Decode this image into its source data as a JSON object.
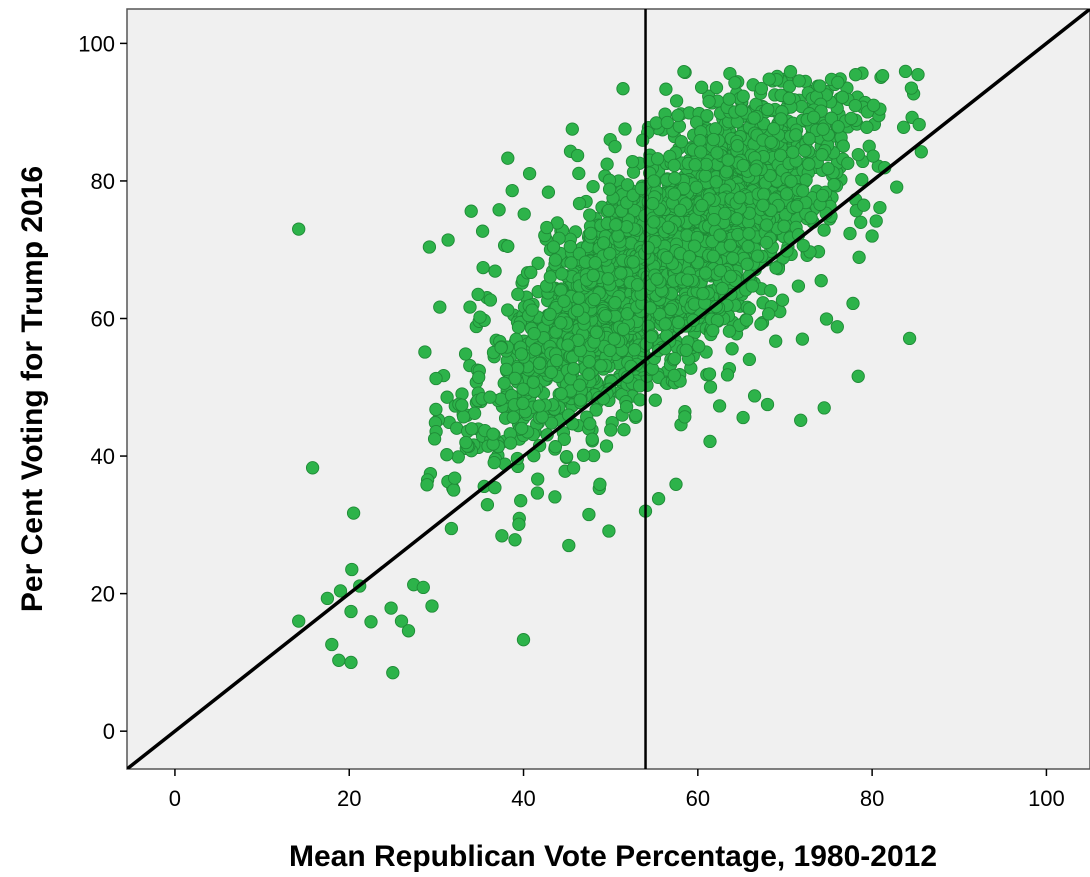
{
  "chart_data": {
    "type": "scatter",
    "title": "",
    "xlabel": "Mean Republican Vote Percentage, 1980-2012",
    "ylabel": "Per Cent Voting for Trump 2016",
    "xlim": [
      -5.5,
      105
    ],
    "ylim": [
      -5.5,
      105
    ],
    "xticks": [
      0,
      20,
      40,
      60,
      80,
      100
    ],
    "yticks": [
      0,
      20,
      40,
      60,
      80,
      100
    ],
    "grid": false,
    "legend": "none",
    "colors": {
      "point_fill": "#2db34a",
      "point_stroke": "#1f8a36",
      "plot_bg": "#f0f0f0",
      "line": "#000000"
    },
    "reference_lines": [
      {
        "kind": "diagonal",
        "from": [
          -5.5,
          -5.5
        ],
        "to": [
          105,
          105
        ]
      },
      {
        "kind": "vertical",
        "x": 54
      }
    ],
    "sample_cloud": {
      "count": 2600,
      "x_mean": 56,
      "x_sd": 10.5,
      "slope": 0.95,
      "intercept": 15,
      "resid_sd": 8.5,
      "x_range": [
        28,
        86
      ],
      "y_range": [
        14,
        96
      ]
    },
    "points": [
      {
        "x": 14.2,
        "y": 73
      },
      {
        "x": 14.2,
        "y": 16
      },
      {
        "x": 15.8,
        "y": 38.3
      },
      {
        "x": 29.2,
        "y": 70.4
      },
      {
        "x": 20.5,
        "y": 31.7
      },
      {
        "x": 25,
        "y": 8.5
      },
      {
        "x": 40,
        "y": 13.3
      },
      {
        "x": 18,
        "y": 12.6
      },
      {
        "x": 20.2,
        "y": 10
      },
      {
        "x": 18.8,
        "y": 10.3
      },
      {
        "x": 17.5,
        "y": 19.3
      },
      {
        "x": 19,
        "y": 20.4
      },
      {
        "x": 20.3,
        "y": 23.5
      },
      {
        "x": 21.2,
        "y": 21.1
      },
      {
        "x": 20.2,
        "y": 17.4
      },
      {
        "x": 22.5,
        "y": 15.9
      },
      {
        "x": 24.8,
        "y": 17.9
      },
      {
        "x": 26,
        "y": 16
      },
      {
        "x": 26.8,
        "y": 14.6
      },
      {
        "x": 27.4,
        "y": 21.3
      },
      {
        "x": 28.5,
        "y": 20.9
      },
      {
        "x": 29.5,
        "y": 18.2
      },
      {
        "x": 29.8,
        "y": 42.5
      },
      {
        "x": 31.2,
        "y": 40.2
      },
      {
        "x": 32.1,
        "y": 36.8
      },
      {
        "x": 35,
        "y": 60.2
      },
      {
        "x": 34,
        "y": 75.6
      },
      {
        "x": 35.3,
        "y": 72.7
      },
      {
        "x": 37.2,
        "y": 75.8
      },
      {
        "x": 38.2,
        "y": 83.3
      },
      {
        "x": 38.2,
        "y": 70.5
      },
      {
        "x": 84.3,
        "y": 57.1
      },
      {
        "x": 78.4,
        "y": 51.6
      },
      {
        "x": 74.5,
        "y": 47
      },
      {
        "x": 71.8,
        "y": 45.2
      },
      {
        "x": 85.4,
        "y": 88.2
      },
      {
        "x": 81.2,
        "y": 95.3
      },
      {
        "x": 79.4,
        "y": 87.8
      },
      {
        "x": 77.6,
        "y": 89.1
      },
      {
        "x": 74,
        "y": 93.8
      },
      {
        "x": 70.5,
        "y": 92
      },
      {
        "x": 65,
        "y": 90.3
      },
      {
        "x": 56.5,
        "y": 88.5
      },
      {
        "x": 50.5,
        "y": 85
      },
      {
        "x": 46.2,
        "y": 83.7
      },
      {
        "x": 80,
        "y": 72
      },
      {
        "x": 78.5,
        "y": 68.9
      },
      {
        "x": 77.8,
        "y": 62.2
      },
      {
        "x": 76,
        "y": 58.8
      },
      {
        "x": 72,
        "y": 57
      },
      {
        "x": 68,
        "y": 47.5
      },
      {
        "x": 65.2,
        "y": 45.6
      },
      {
        "x": 62.5,
        "y": 47.3
      },
      {
        "x": 58.5,
        "y": 45.7
      },
      {
        "x": 57.5,
        "y": 35.9
      },
      {
        "x": 55.5,
        "y": 33.8
      },
      {
        "x": 54,
        "y": 32
      },
      {
        "x": 49.8,
        "y": 29.1
      },
      {
        "x": 47.5,
        "y": 31.5
      },
      {
        "x": 45.2,
        "y": 27
      }
    ]
  }
}
